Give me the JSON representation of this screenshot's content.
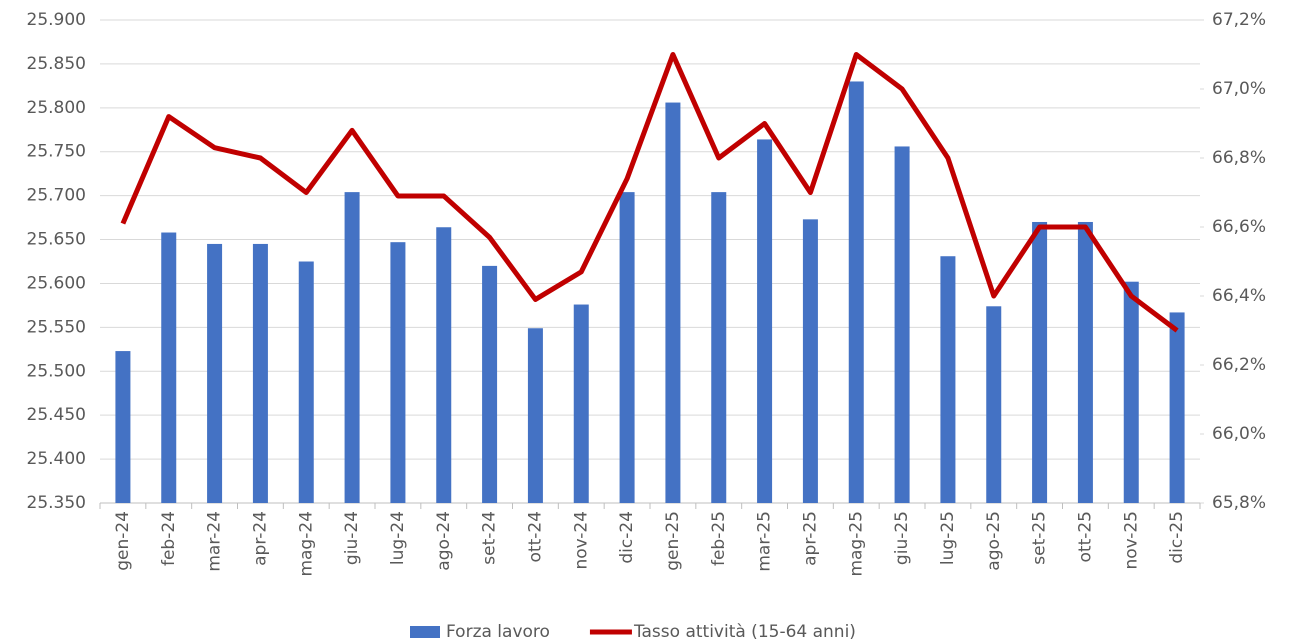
{
  "chart_data": {
    "type": "bar_line",
    "categories": [
      "gen-24",
      "feb-24",
      "mar-24",
      "apr-24",
      "mag-24",
      "giu-24",
      "lug-24",
      "ago-24",
      "set-24",
      "ott-24",
      "nov-24",
      "dic-24",
      "gen-25",
      "feb-25",
      "mar-25",
      "apr-25",
      "mag-25",
      "giu-25",
      "lug-25",
      "ago-25",
      "set-25",
      "ott-25",
      "nov-25",
      "dic-25"
    ],
    "series": [
      {
        "name": "Forza lavoro",
        "type": "bar",
        "color": "#4472c4",
        "values": [
          25523,
          25658,
          25645,
          25645,
          25625,
          25704,
          25647,
          25664,
          25620,
          25549,
          25576,
          25704,
          25806,
          25704,
          25764,
          25673,
          25830,
          25756,
          25631,
          25574,
          25670,
          25670,
          25602,
          25567
        ]
      },
      {
        "name": "Tasso attività (15-64 anni)",
        "type": "line",
        "axis": "y2",
        "color": "#c00000",
        "values": [
          66.61,
          66.92,
          66.83,
          66.8,
          66.7,
          66.88,
          66.69,
          66.69,
          66.57,
          66.39,
          66.47,
          66.74,
          67.1,
          66.8,
          66.9,
          66.7,
          67.1,
          67.0,
          66.8,
          66.4,
          66.6,
          66.6,
          66.4,
          66.3
        ]
      }
    ],
    "ylim": [
      25350,
      25900
    ],
    "yticks": [
      {
        "value": 25350,
        "label": "25.350"
      },
      {
        "value": 25400,
        "label": "25.400"
      },
      {
        "value": 25450,
        "label": "25.450"
      },
      {
        "value": 25500,
        "label": "25.500"
      },
      {
        "value": 25550,
        "label": "25.550"
      },
      {
        "value": 25600,
        "label": "25.600"
      },
      {
        "value": 25650,
        "label": "25.650"
      },
      {
        "value": 25700,
        "label": "25.700"
      },
      {
        "value": 25750,
        "label": "25.750"
      },
      {
        "value": 25800,
        "label": "25.800"
      },
      {
        "value": 25850,
        "label": "25.850"
      },
      {
        "value": 25900,
        "label": "25.900"
      }
    ],
    "y2lim": [
      65.8,
      67.2
    ],
    "y2ticks": [
      {
        "value": 65.8,
        "label": "65,8%"
      },
      {
        "value": 66.0,
        "label": "66,0%"
      },
      {
        "value": 66.2,
        "label": "66,2%"
      },
      {
        "value": 66.4,
        "label": "66,4%"
      },
      {
        "value": 66.6,
        "label": "66,6%"
      },
      {
        "value": 66.8,
        "label": "66,8%"
      },
      {
        "value": 67.0,
        "label": "67,0%"
      },
      {
        "value": 67.2,
        "label": "67,2%"
      }
    ],
    "grid": true,
    "legend": "bottom"
  }
}
